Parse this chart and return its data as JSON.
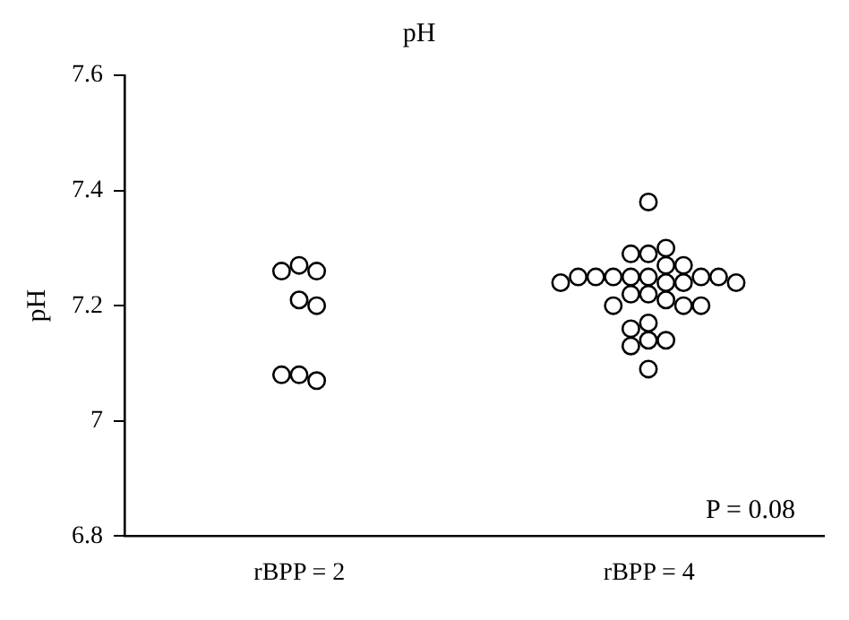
{
  "chart_data": {
    "type": "scatter",
    "title": "pH",
    "ylabel": "pH",
    "categories": [
      "rBPP = 2",
      "rBPP = 4"
    ],
    "series": [
      {
        "color": "#000000",
        "x": [
          "rBPP = 2",
          "rBPP = 2",
          "rBPP = 2",
          "rBPP = 2",
          "rBPP = 2",
          "rBPP = 2",
          "rBPP = 2",
          "rBPP = 2",
          "rBPP = 4",
          "rBPP = 4",
          "rBPP = 4",
          "rBPP = 4",
          "rBPP = 4",
          "rBPP = 4",
          "rBPP = 4",
          "rBPP = 4",
          "rBPP = 4",
          "rBPP = 4",
          "rBPP = 4",
          "rBPP = 4",
          "rBPP = 4",
          "rBPP = 4",
          "rBPP = 4",
          "rBPP = 4",
          "rBPP = 4",
          "rBPP = 4",
          "rBPP = 4",
          "rBPP = 4",
          "rBPP = 4",
          "rBPP = 4",
          "rBPP = 4",
          "rBPP = 4",
          "rBPP = 4",
          "rBPP = 4",
          "rBPP = 4",
          "rBPP = 4",
          "rBPP = 4"
        ],
        "values": [
          7.27,
          7.26,
          7.26,
          7.21,
          7.2,
          7.08,
          7.07,
          7.08,
          7.38,
          7.29,
          7.3,
          7.29,
          7.27,
          7.27,
          7.25,
          7.25,
          7.25,
          7.25,
          7.25,
          7.25,
          7.25,
          7.24,
          7.24,
          7.24,
          7.24,
          7.22,
          7.22,
          7.21,
          7.2,
          7.2,
          7.2,
          7.17,
          7.14,
          7.14,
          7.16,
          7.13,
          7.09
        ]
      }
    ],
    "ylim": [
      6.8,
      7.6
    ],
    "yticks": [
      {
        "value": 6.8,
        "label": "6.8"
      },
      {
        "value": 7,
        "label": "7"
      },
      {
        "value": 7.2,
        "label": "7.2"
      },
      {
        "value": 7.4,
        "label": "7.4"
      },
      {
        "value": 7.6,
        "label": "7.6"
      }
    ],
    "marker": "circle",
    "grid": false,
    "legend": false,
    "annotations": [
      "P = 0.08"
    ]
  }
}
